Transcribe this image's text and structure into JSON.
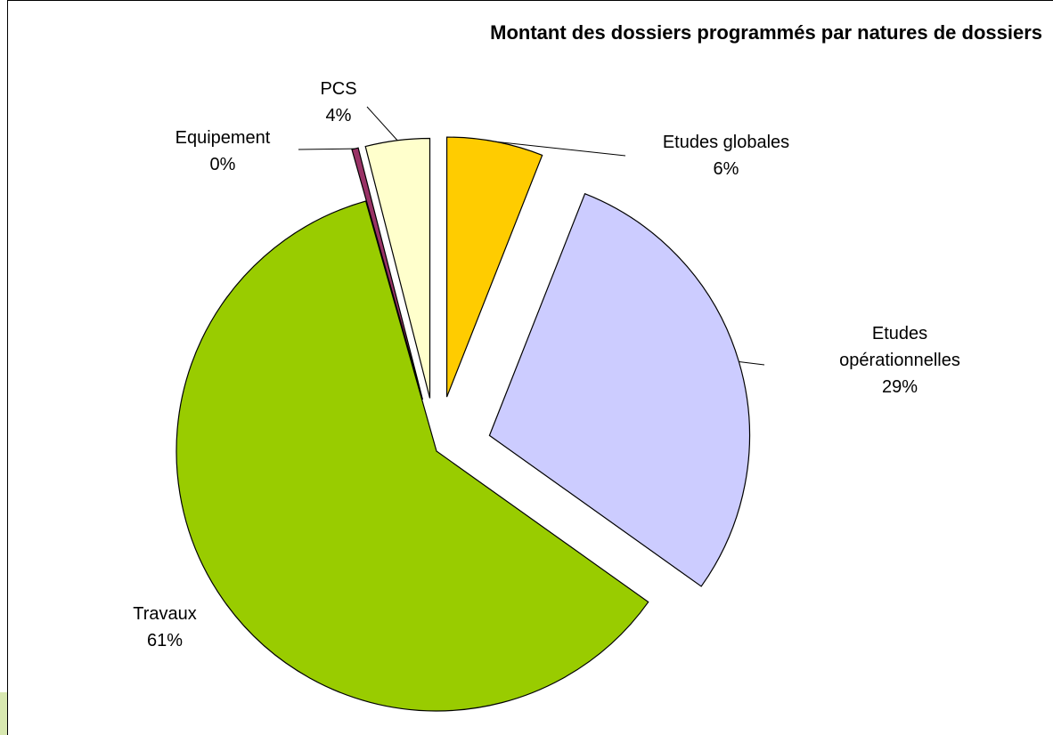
{
  "chart_data": {
    "type": "pie",
    "title": "Montant des dossiers programmés par natures de dossiers",
    "categories": [
      "Etudes globales",
      "Etudes opérationnelles",
      "Travaux",
      "Equipement",
      "PCS"
    ],
    "values": [
      6,
      29,
      61,
      0.4,
      4
    ],
    "value_labels": [
      "6%",
      "29%",
      "61%",
      "0%",
      "4%"
    ],
    "colors": [
      "#ffcc00",
      "#ccccff",
      "#99cc00",
      "#993366",
      "#ffffcc"
    ]
  }
}
